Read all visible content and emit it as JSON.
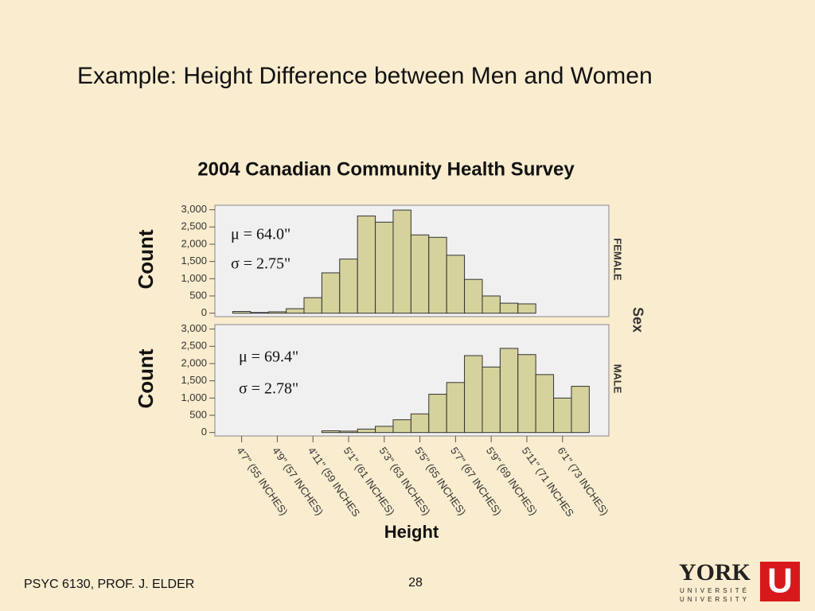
{
  "slide": {
    "title": "Example:  Height Difference between Men and Women",
    "footer": "PSYC 6130, PROF. J. ELDER",
    "page": "28",
    "logo": {
      "name": "YORK",
      "line1": "UNIVERSITÉ",
      "line2": "UNIVERSITY",
      "mark": "U"
    }
  },
  "chart_data": {
    "type": "histogram",
    "title": "2004 Canadian Community Health Survey",
    "x_label": "Height",
    "y_label": "Count",
    "facet_label": "Sex",
    "bins": [
      54.5,
      55.5,
      56.5,
      57.5,
      58.5,
      59.5,
      60.5,
      61.5,
      62.5,
      63.5,
      64.5,
      65.5,
      66.5,
      67.5,
      68.5,
      69.5,
      70.5,
      71.5,
      72.5,
      73.5,
      74.5
    ],
    "xlim": [
      53.5,
      75.6
    ],
    "xticks": [
      {
        "value": 55,
        "label": "4'7\" (55 INCHES)"
      },
      {
        "value": 57,
        "label": "4'9\" (57 INCHES)"
      },
      {
        "value": 59,
        "label": "4'11\" (59 INCHES"
      },
      {
        "value": 61,
        "label": "5'1\" (61 INCHES)"
      },
      {
        "value": 63,
        "label": "5'3\" (63 INCHES)"
      },
      {
        "value": 65,
        "label": "5'5\" (65 INCHES)"
      },
      {
        "value": 67,
        "label": "5'7\" (67 INCHES)"
      },
      {
        "value": 69,
        "label": "5'9\" (69 INCHES)"
      },
      {
        "value": 71,
        "label": "5'11\" (71 INCHES"
      },
      {
        "value": 73,
        "label": "6'1\" (73 INCHES)"
      }
    ],
    "ylim": [
      -100,
      3130
    ],
    "yticks": [
      0,
      500,
      {
        "value": 1000,
        "label": "1,000"
      },
      {
        "value": 1500,
        "label": "1,500"
      },
      {
        "value": 2000,
        "label": "2,000"
      },
      {
        "value": 2500,
        "label": "2,500"
      },
      {
        "value": 3000,
        "label": "3,000"
      }
    ],
    "series": [
      {
        "name": "FEMALE",
        "color": "#d6d29c",
        "annotations": [
          "μ = 64.0\"",
          "σ = 2.75\""
        ],
        "values": [
          50,
          20,
          40,
          130,
          450,
          1170,
          1570,
          2820,
          2640,
          2990,
          2270,
          2200,
          1680,
          980,
          500,
          290,
          270,
          null,
          null,
          null
        ]
      },
      {
        "name": "MALE",
        "color": "#d6d29c",
        "annotations": [
          "μ = 69.4\"",
          "σ = 2.78\""
        ],
        "values": [
          null,
          null,
          null,
          null,
          null,
          50,
          40,
          100,
          180,
          370,
          540,
          1110,
          1450,
          2230,
          1900,
          2440,
          2260,
          1680,
          1000,
          1340
        ]
      }
    ]
  }
}
